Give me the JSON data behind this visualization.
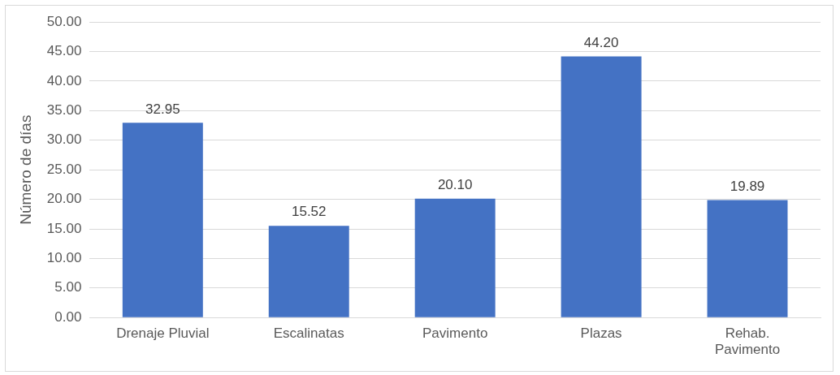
{
  "chart_data": {
    "type": "bar",
    "ylabel": "Número de días",
    "categories": [
      "Drenaje Pluvial",
      "Escalinatas",
      "Pavimento",
      "Plazas",
      "Rehab. Pavimento"
    ],
    "values": [
      32.95,
      15.52,
      20.1,
      44.2,
      19.89
    ],
    "value_labels": [
      "32.95",
      "15.52",
      "20.10",
      "44.20",
      "19.89"
    ],
    "color": "#4472c4",
    "ylim": [
      0,
      50
    ],
    "yticks": [
      {
        "value": 0,
        "label": "0.00"
      },
      {
        "value": 5,
        "label": "5.00"
      },
      {
        "value": 10,
        "label": "10.00"
      },
      {
        "value": 15,
        "label": "15.00"
      },
      {
        "value": 20,
        "label": "20.00"
      },
      {
        "value": 25,
        "label": "25.00"
      },
      {
        "value": 30,
        "label": "30.00"
      },
      {
        "value": 35,
        "label": "35.00"
      },
      {
        "value": 40,
        "label": "40.00"
      },
      {
        "value": 45,
        "label": "45.00"
      },
      {
        "value": 50,
        "label": "50.00"
      }
    ],
    "grid": "y"
  }
}
